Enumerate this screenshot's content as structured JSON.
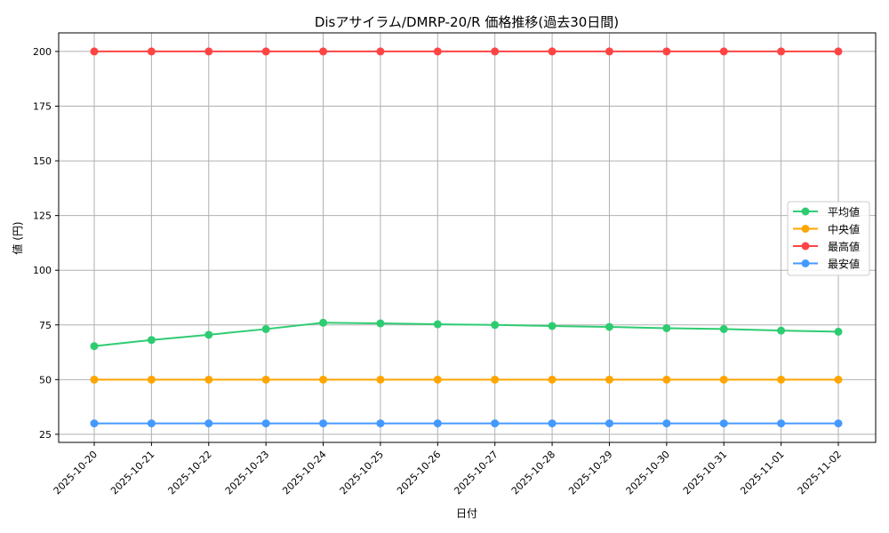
{
  "chart_data": {
    "type": "line",
    "title": "Disアサイラム/DMRP-20/R 価格推移(過去30日間)",
    "xlabel": "日付",
    "ylabel": "値 (円)",
    "x": [
      "2025-10-20",
      "2025-10-21",
      "2025-10-22",
      "2025-10-23",
      "2025-10-24",
      "2025-10-25",
      "2025-10-26",
      "2025-10-27",
      "2025-10-28",
      "2025-10-29",
      "2025-10-30",
      "2025-10-31",
      "2025-11-01",
      "2025-11-02"
    ],
    "ylim": [
      21.3,
      208.5
    ],
    "yticks": [
      25,
      50,
      75,
      100,
      125,
      150,
      175,
      200
    ],
    "grid": true,
    "legend_position": "center-right",
    "series": [
      {
        "name": "平均値",
        "color": "#2ecc71",
        "values": [
          65.3,
          68.1,
          70.5,
          73.1,
          76.0,
          75.7,
          75.3,
          75.0,
          74.5,
          74.1,
          73.5,
          73.1,
          72.4,
          71.9
        ]
      },
      {
        "name": "中央値",
        "color": "#ffa500",
        "values": [
          50,
          50,
          50,
          50,
          50,
          50,
          50,
          50,
          50,
          50,
          50,
          50,
          50,
          50
        ]
      },
      {
        "name": "最高値",
        "color": "#ff4444",
        "values": [
          200,
          200,
          200,
          200,
          200,
          200,
          200,
          200,
          200,
          200,
          200,
          200,
          200,
          200
        ]
      },
      {
        "name": "最安値",
        "color": "#4499ff",
        "values": [
          30,
          30,
          30,
          30,
          30,
          30,
          30,
          30,
          30,
          30,
          30,
          30,
          30,
          30
        ]
      }
    ]
  }
}
